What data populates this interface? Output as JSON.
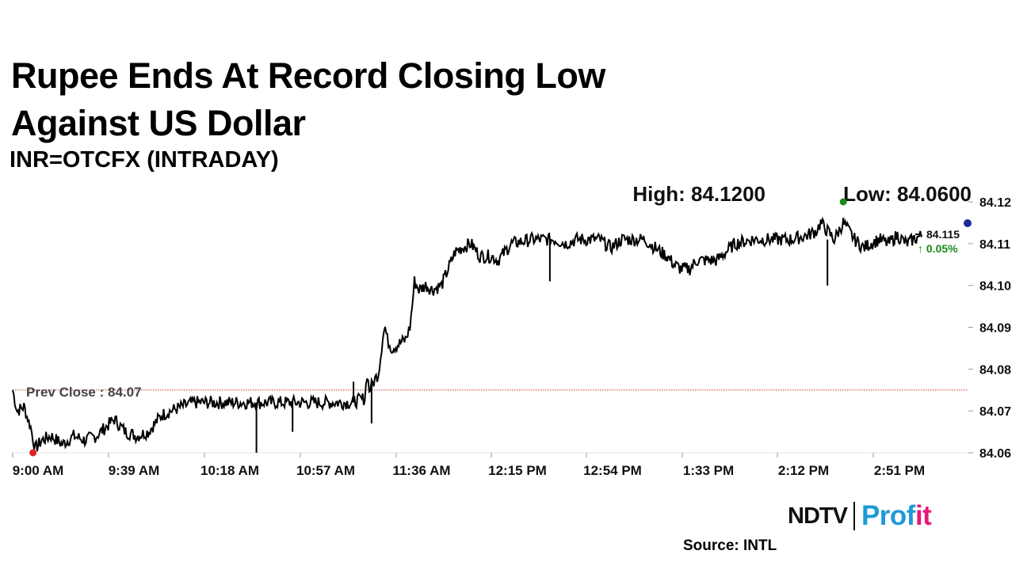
{
  "headline": "Rupee Ends At Record Closing Low Against US Dollar",
  "subtitle": "INR=OTCFX (INTRADAY)",
  "brand": {
    "part1": "NDTV",
    "part2_main": "Prof",
    "part2_tail": "it"
  },
  "source": "Source: INTL",
  "colors": {
    "line": "#000000",
    "prev_close": "#c0392b",
    "high_dot": "#1a8a1a",
    "low_dot": "#e02020",
    "last_dot": "#1b2a9a",
    "change_text": "#1a8a1a"
  },
  "chart_data": {
    "type": "line",
    "title": "INR=OTCFX (INTRADAY)",
    "x_tick_labels": [
      "9:00 AM",
      "9:39 AM",
      "10:18 AM",
      "10:57 AM",
      "11:36 AM",
      "12:15 PM",
      "12:54 PM",
      "1:33 PM",
      "2:12 PM",
      "2:51 PM"
    ],
    "y_tick_labels": [
      "84.12",
      "84.11",
      "84.10",
      "84.09",
      "84.08",
      "84.07",
      "84.06"
    ],
    "ylim": [
      84.06,
      84.12
    ],
    "x_start_min": 0,
    "x_end_min": 402,
    "prev_close": 84.075,
    "prev_close_label": "Prev Close : 84.07",
    "high_label": "High: 84.1200",
    "low_label": "Low: 84.0600",
    "high_point": {
      "t": 368,
      "v": 84.12
    },
    "low_point": {
      "t": 9,
      "v": 84.06
    },
    "last_point": {
      "t": 403,
      "v": 84.1153
    },
    "last_value": "84.115",
    "change": "↑ 0.05%",
    "series": [
      {
        "name": "INR=OTCFX",
        "points": [
          [
            0,
            84.075
          ],
          [
            2,
            84.07
          ],
          [
            5,
            84.071
          ],
          [
            8,
            84.066
          ],
          [
            10,
            84.061
          ],
          [
            13,
            84.063
          ],
          [
            17,
            84.064
          ],
          [
            22,
            84.062
          ],
          [
            27,
            84.064
          ],
          [
            32,
            84.063
          ],
          [
            37,
            84.064
          ],
          [
            41,
            84.066
          ],
          [
            45,
            84.068
          ],
          [
            50,
            84.065
          ],
          [
            55,
            84.064
          ],
          [
            60,
            84.065
          ],
          [
            63,
            84.067
          ],
          [
            66,
            84.069
          ],
          [
            70,
            84.07
          ],
          [
            75,
            84.071
          ],
          [
            80,
            84.072
          ],
          [
            90,
            84.072
          ],
          [
            100,
            84.072
          ],
          [
            110,
            84.072
          ],
          [
            120,
            84.072
          ],
          [
            130,
            84.072
          ],
          [
            140,
            84.072
          ],
          [
            150,
            84.072
          ],
          [
            156,
            84.073
          ],
          [
            157,
            84.079
          ],
          [
            158,
            84.075
          ],
          [
            160,
            84.077
          ],
          [
            162,
            84.079
          ],
          [
            163,
            84.083
          ],
          [
            164,
            84.088
          ],
          [
            165,
            84.09
          ],
          [
            166,
            84.087
          ],
          [
            168,
            84.085
          ],
          [
            171,
            84.086
          ],
          [
            174,
            84.087
          ],
          [
            176,
            84.09
          ],
          [
            177,
            84.095
          ],
          [
            178,
            84.101
          ],
          [
            180,
            84.099
          ],
          [
            183,
            84.1
          ],
          [
            186,
            84.099
          ],
          [
            190,
            84.1
          ],
          [
            193,
            84.104
          ],
          [
            196,
            84.108
          ],
          [
            199,
            84.109
          ],
          [
            203,
            84.11
          ],
          [
            207,
            84.107
          ],
          [
            212,
            84.107
          ],
          [
            215,
            84.106
          ],
          [
            218,
            84.108
          ],
          [
            221,
            84.11
          ],
          [
            230,
            84.111
          ],
          [
            240,
            84.111
          ],
          [
            245,
            84.11
          ],
          [
            250,
            84.111
          ],
          [
            260,
            84.111
          ],
          [
            265,
            84.109
          ],
          [
            270,
            84.111
          ],
          [
            280,
            84.111
          ],
          [
            287,
            84.108
          ],
          [
            290,
            84.107
          ],
          [
            293,
            84.105
          ],
          [
            296,
            84.104
          ],
          [
            300,
            84.104
          ],
          [
            303,
            84.106
          ],
          [
            308,
            84.106
          ],
          [
            312,
            84.106
          ],
          [
            316,
            84.108
          ],
          [
            320,
            84.11
          ],
          [
            328,
            84.111
          ],
          [
            335,
            84.111
          ],
          [
            345,
            84.111
          ],
          [
            352,
            84.112
          ],
          [
            356,
            84.113
          ],
          [
            358,
            84.115
          ],
          [
            361,
            84.113
          ],
          [
            364,
            84.111
          ],
          [
            368,
            84.115
          ],
          [
            373,
            84.111
          ],
          [
            377,
            84.109
          ],
          [
            380,
            84.11
          ],
          [
            384,
            84.111
          ],
          [
            388,
            84.11
          ],
          [
            392,
            84.112
          ],
          [
            396,
            84.11
          ],
          [
            399,
            84.111
          ],
          [
            403,
            84.112
          ]
        ]
      }
    ]
  }
}
